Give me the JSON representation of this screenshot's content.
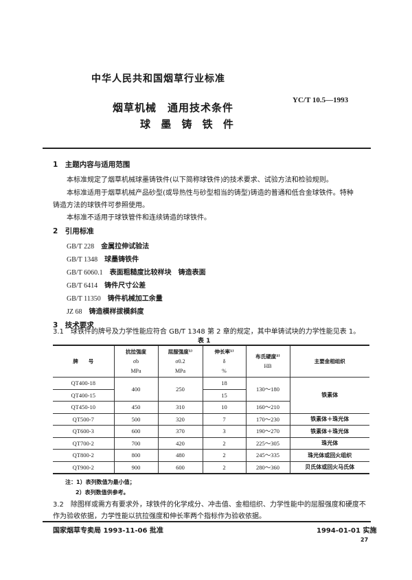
{
  "header": {
    "org": "中华人民共和国烟草行业标准",
    "code": "YC/T 10.5—1993",
    "title": "烟草机械　通用技术条件",
    "subtitle": "球 墨 铸 铁 件"
  },
  "s1": {
    "heading": "1　主题内容与适用范围",
    "p1": "本标准规定了烟草机械球墨铸铁件(以下简称球铁件)的技术要求、试验方法和检验规则。",
    "p2a": "本标准适用于烟草机械产品砂型(或导热性与砂型相当的铸型)铸造的普通和低合金球铁件。特种",
    "p2b": "铸造方法的球铁件可参照使用。",
    "p3": "本标准不适用于球铁管件和连续铸造的球铁件。"
  },
  "s2": {
    "heading": "2　引用标准",
    "refs": [
      {
        "code": "GB/T 228",
        "name": "金属拉伸试验法"
      },
      {
        "code": "GB/T 1348",
        "name": "球墨铸铁件"
      },
      {
        "code": "GB/T 6060.1",
        "name": "表面粗糙度比较样块　铸造表面"
      },
      {
        "code": "GB/T 6414",
        "name": "铸件尺寸公差"
      },
      {
        "code": "GB/T 11350",
        "name": "铸件机械加工余量"
      },
      {
        "code": "JZ 68",
        "name": "铸造模样拔模斜度"
      }
    ]
  },
  "s3": {
    "heading": "3　技术要求",
    "p31": "3.1　球铁件的牌号及力学性能应符合 GB/T 1348 第 2 章的规定，其中单铸试块的力学性能见表 1。",
    "p32a": "3.2　除图样或需方有要求外，球铁件的化学成分、冲击值、金相组织、力学性能中的屈服强度和硬度不",
    "p32b": "作为验收依据，力学性能以抗拉强度和伸长率两个指标作为验收依据。"
  },
  "table": {
    "caption": "表 1",
    "headers": {
      "grade": "牌　　号",
      "tensile": "抗拉强度",
      "tensile_sym": "σb",
      "tensile_unit": "MPa",
      "yield": "屈服强度¹⁾",
      "yield_sym": "σ0.2",
      "yield_unit": "MPa",
      "elong": "伸长率¹⁾",
      "elong_sym": "δ",
      "elong_unit": "%",
      "hard": "布氏硬度²⁾",
      "hard_unit": "HB",
      "micro": "主要金相组织"
    },
    "rows": [
      {
        "grade": "QT400-18",
        "tensile": "400",
        "yield": "250",
        "elong": "18",
        "hard": "130～180",
        "micro": "铁素体"
      },
      {
        "grade": "QT400-15",
        "elong": "15"
      },
      {
        "grade": "QT450-10",
        "tensile": "450",
        "yield": "310",
        "elong": "10",
        "hard": "160～210"
      },
      {
        "grade": "QT500-7",
        "tensile": "500",
        "yield": "320",
        "elong": "7",
        "hard": "170～230",
        "micro": "铁素体＋珠光体"
      },
      {
        "grade": "QT600-3",
        "tensile": "600",
        "yield": "370",
        "elong": "3",
        "hard": "190～270",
        "micro": "铁素体＋珠光体"
      },
      {
        "grade": "QT700-2",
        "tensile": "700",
        "yield": "420",
        "elong": "2",
        "hard": "225～305",
        "micro": "珠光体"
      },
      {
        "grade": "QT800-2",
        "tensile": "800",
        "yield": "480",
        "elong": "2",
        "hard": "245～335",
        "micro": "珠光体或回火组织"
      },
      {
        "grade": "QT900-2",
        "tensile": "900",
        "yield": "600",
        "elong": "2",
        "hard": "280～360",
        "micro": "贝氏体或回火马氏体"
      }
    ],
    "note1": "注：1）表列数值为最小值；",
    "note2": "2）表列数值供参考。"
  },
  "footer": {
    "approved": "国家烟草专卖局 1993-11-06 批准",
    "effective": "1994-01-01 实施",
    "page": "27"
  }
}
